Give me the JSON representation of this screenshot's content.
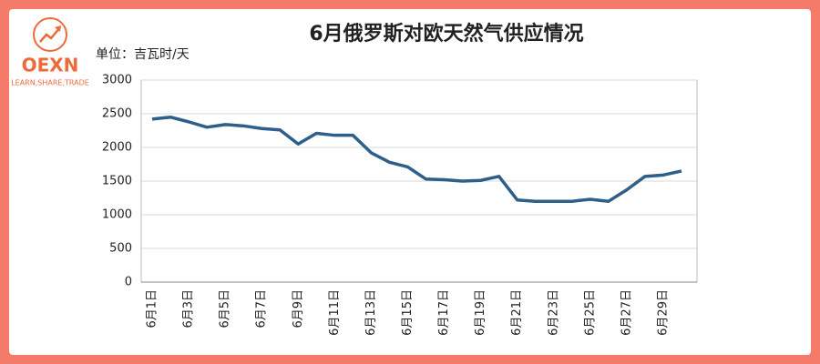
{
  "logo": {
    "name": "OEXN",
    "tagline": "LEARN,SHARE,TRADE"
  },
  "chart_data": {
    "type": "line",
    "title": "6月俄罗斯对欧天然气供应情况",
    "ylabel": "单位：吉瓦时/天",
    "categories": [
      "6月1日",
      null,
      "6月3日",
      null,
      "6月5日",
      null,
      "6月7日",
      null,
      "6月9日",
      null,
      "6月11日",
      null,
      "6月13日",
      null,
      "6月15日",
      null,
      "6月17日",
      null,
      "6月19日",
      null,
      "6月21日",
      null,
      "6月23日",
      null,
      "6月25日",
      null,
      "6月27日",
      null,
      "6月29日",
      null
    ],
    "values": [
      2420,
      2450,
      2380,
      2300,
      2340,
      2320,
      2280,
      2260,
      2050,
      2210,
      2180,
      2180,
      1920,
      1780,
      1710,
      1530,
      1520,
      1500,
      1510,
      1570,
      1220,
      1200,
      1200,
      1200,
      1230,
      1200,
      1370,
      1570,
      1590,
      1650
    ],
    "color": "#2e5f8a",
    "ylim": [
      0,
      3000
    ],
    "yticks": [
      0,
      500,
      1000,
      1500,
      2000,
      2500,
      3000
    ],
    "grid": true
  }
}
